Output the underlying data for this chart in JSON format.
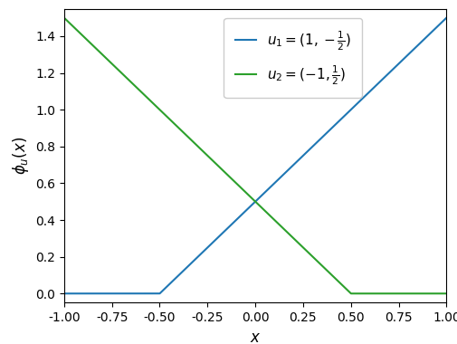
{
  "x_min": -1.0,
  "x_max": 1.0,
  "ylim": [
    -0.05,
    1.55
  ],
  "line1_color": "#1f77b4",
  "line2_color": "#2ca02c",
  "line1_label": "$u_1 = (1, -\\frac{1}{2})$",
  "line2_label": "$u_2 = (-1, \\frac{1}{2})$",
  "xlabel": "$x$",
  "ylabel": "$\\phi_u(x)$",
  "figsize": [
    5.06,
    3.8
  ],
  "dpi": 100,
  "yticks": [
    0.0,
    0.2,
    0.4,
    0.6,
    0.8,
    1.0,
    1.2,
    1.4
  ],
  "xticks": [
    -1.0,
    -0.75,
    -0.5,
    -0.25,
    0.0,
    0.25,
    0.5,
    0.75,
    1.0
  ]
}
